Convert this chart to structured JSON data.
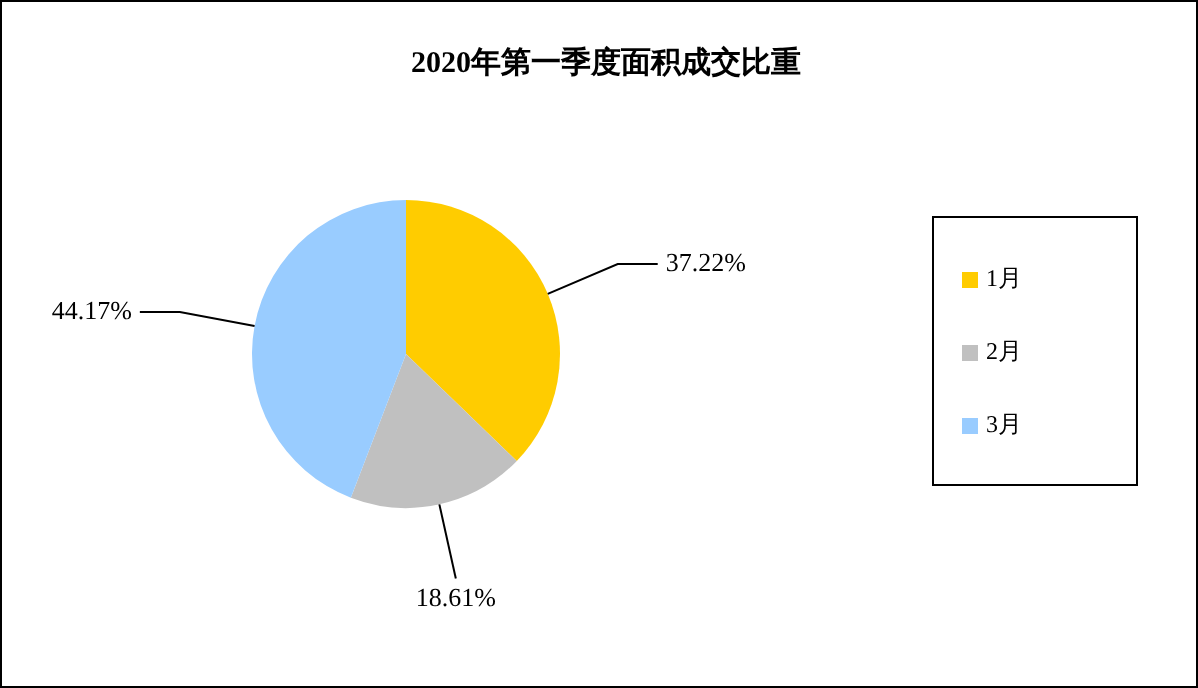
{
  "chart_data": {
    "type": "pie",
    "title": "2020年第一季度面积成交比重",
    "categories": [
      "1月",
      "2月",
      "3月"
    ],
    "values": [
      37.22,
      18.61,
      44.17
    ],
    "colors": [
      "#ffcc00",
      "#c0c0c0",
      "#99ccff"
    ],
    "value_labels": [
      "37.22%",
      "18.61%",
      "44.17%"
    ],
    "legend": "right"
  }
}
